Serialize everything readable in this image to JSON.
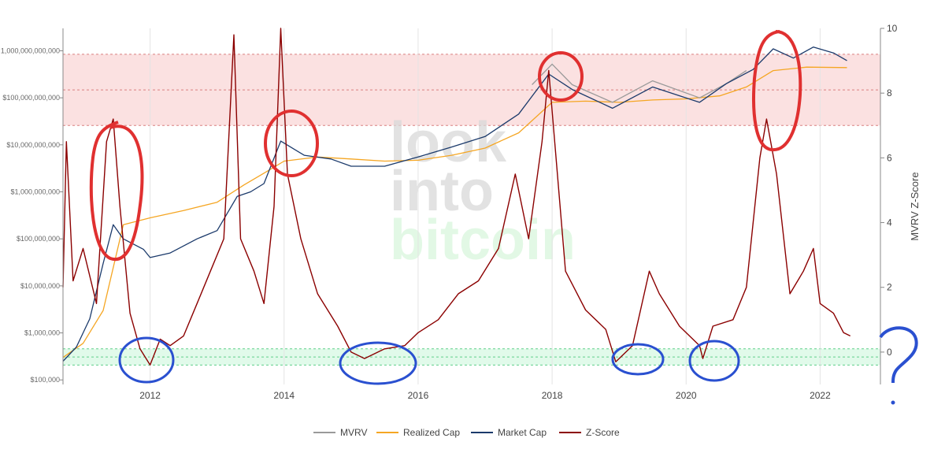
{
  "chart_data": {
    "type": "line",
    "y_scale": "log",
    "grid": true,
    "legend_position": "bottom",
    "x_ticks": [
      "2012",
      "2014",
      "2016",
      "2018",
      "2020",
      "2022"
    ],
    "x_tick_values": [
      2012,
      2014,
      2016,
      2018,
      2020,
      2022
    ],
    "xlim": [
      2010.7,
      2022.9
    ],
    "y_left_ticks": [
      {
        "value": 100000,
        "label": "$100,000"
      },
      {
        "value": 1000000,
        "label": "$1,000,000"
      },
      {
        "value": 10000000,
        "label": "$10,000,000"
      },
      {
        "value": 100000000,
        "label": "$100,000,000"
      },
      {
        "value": 1000000000,
        "label": "$1,000,000,000"
      },
      {
        "value": 10000000000,
        "label": "$10,000,000,000"
      },
      {
        "value": 100000000000,
        "label": "$100,000,000,000"
      },
      {
        "value": 1000000000000,
        "label": "1,000,000,000,000"
      }
    ],
    "y_right_ticks": [
      "0",
      "2",
      "4",
      "6",
      "8",
      "10"
    ],
    "y_right_tick_values": [
      0,
      2,
      4,
      6,
      8,
      10
    ],
    "y_right_label": "MVRV Z-Score",
    "ylim_left": [
      80000,
      3000000000000
    ],
    "ylim_right": [
      -1,
      10
    ],
    "bands": [
      {
        "zone": "high",
        "from": 7,
        "to": 9.2,
        "color": "#f8c8c8"
      },
      {
        "zone": "low",
        "from": -0.4,
        "to": 0.1,
        "color": "#c8f5d8"
      }
    ],
    "watermark": [
      "look",
      "into",
      "bitcoin"
    ],
    "series": [
      {
        "name": "MVRV",
        "color": "#9a9a9a",
        "axis": "left",
        "points": [
          [
            2017.7,
            190000000000
          ],
          [
            2018.0,
            520000000000
          ],
          [
            2018.3,
            190000000000
          ],
          [
            2018.9,
            80000000000
          ],
          [
            2019.5,
            230000000000
          ],
          [
            2020.2,
            100000000000
          ],
          [
            2020.6,
            200000000000
          ],
          [
            2020.9,
            380000000000
          ]
        ]
      },
      {
        "name": "Realized Cap",
        "color": "#f5a623",
        "axis": "left",
        "points": [
          [
            2010.7,
            300000
          ],
          [
            2011.0,
            600000
          ],
          [
            2011.3,
            3000000
          ],
          [
            2011.6,
            200000000
          ],
          [
            2012.0,
            280000000
          ],
          [
            2012.5,
            400000000
          ],
          [
            2013.0,
            600000000
          ],
          [
            2013.4,
            1400000000
          ],
          [
            2013.7,
            2500000000
          ],
          [
            2014.0,
            4500000000
          ],
          [
            2014.5,
            5500000000
          ],
          [
            2015.0,
            5000000000
          ],
          [
            2015.5,
            4500000000
          ],
          [
            2016.0,
            4700000000
          ],
          [
            2016.5,
            6000000000
          ],
          [
            2017.0,
            8500000000
          ],
          [
            2017.5,
            18000000000
          ],
          [
            2018.0,
            80000000000
          ],
          [
            2018.5,
            85000000000
          ],
          [
            2019.0,
            80000000000
          ],
          [
            2019.5,
            90000000000
          ],
          [
            2020.0,
            95000000000
          ],
          [
            2020.5,
            110000000000
          ],
          [
            2020.9,
            170000000000
          ],
          [
            2021.3,
            380000000000
          ],
          [
            2021.8,
            450000000000
          ],
          [
            2022.4,
            440000000000
          ]
        ]
      },
      {
        "name": "Market Cap",
        "color": "#1b3a6b",
        "axis": "left",
        "points": [
          [
            2010.7,
            250000
          ],
          [
            2010.9,
            500000
          ],
          [
            2011.1,
            2000000
          ],
          [
            2011.3,
            30000000
          ],
          [
            2011.45,
            200000000
          ],
          [
            2011.6,
            100000000
          ],
          [
            2011.9,
            60000000
          ],
          [
            2012.0,
            40000000
          ],
          [
            2012.3,
            50000000
          ],
          [
            2012.7,
            100000000
          ],
          [
            2013.0,
            150000000
          ],
          [
            2013.3,
            800000000
          ],
          [
            2013.5,
            1000000000
          ],
          [
            2013.7,
            1500000000
          ],
          [
            2013.95,
            12000000000
          ],
          [
            2014.3,
            6000000000
          ],
          [
            2014.7,
            5000000000
          ],
          [
            2015.0,
            3500000000
          ],
          [
            2015.5,
            3500000000
          ],
          [
            2016.0,
            5500000000
          ],
          [
            2016.5,
            9000000000
          ],
          [
            2017.0,
            15000000000
          ],
          [
            2017.5,
            45000000000
          ],
          [
            2017.95,
            320000000000
          ],
          [
            2018.3,
            150000000000
          ],
          [
            2018.9,
            60000000000
          ],
          [
            2019.5,
            170000000000
          ],
          [
            2020.2,
            80000000000
          ],
          [
            2020.6,
            200000000000
          ],
          [
            2021.0,
            400000000000
          ],
          [
            2021.3,
            1100000000000
          ],
          [
            2021.6,
            700000000000
          ],
          [
            2021.9,
            1200000000000
          ],
          [
            2022.2,
            900000000000
          ],
          [
            2022.4,
            620000000000
          ]
        ]
      },
      {
        "name": "Z-Score",
        "color": "#8b0000",
        "axis": "right",
        "points": [
          [
            2010.7,
            2
          ],
          [
            2010.75,
            6.5
          ],
          [
            2010.85,
            2.2
          ],
          [
            2011.0,
            3.2
          ],
          [
            2011.2,
            1.5
          ],
          [
            2011.35,
            6.5
          ],
          [
            2011.45,
            7.2
          ],
          [
            2011.55,
            4.5
          ],
          [
            2011.7,
            1.2
          ],
          [
            2011.85,
            0.1
          ],
          [
            2012.0,
            -0.4
          ],
          [
            2012.15,
            0.4
          ],
          [
            2012.3,
            0.2
          ],
          [
            2012.5,
            0.5
          ],
          [
            2012.7,
            1.5
          ],
          [
            2012.9,
            2.5
          ],
          [
            2013.1,
            3.5
          ],
          [
            2013.25,
            9.8
          ],
          [
            2013.35,
            3.5
          ],
          [
            2013.55,
            2.5
          ],
          [
            2013.7,
            1.5
          ],
          [
            2013.85,
            4.5
          ],
          [
            2013.95,
            10
          ],
          [
            2014.05,
            5.5
          ],
          [
            2014.25,
            3.5
          ],
          [
            2014.5,
            1.8
          ],
          [
            2014.8,
            0.8
          ],
          [
            2015.0,
            0.0
          ],
          [
            2015.2,
            -0.2
          ],
          [
            2015.5,
            0.1
          ],
          [
            2015.8,
            0.2
          ],
          [
            2016.0,
            0.6
          ],
          [
            2016.3,
            1.0
          ],
          [
            2016.6,
            1.8
          ],
          [
            2016.9,
            2.2
          ],
          [
            2017.2,
            3.2
          ],
          [
            2017.45,
            5.5
          ],
          [
            2017.65,
            3.5
          ],
          [
            2017.85,
            6.5
          ],
          [
            2017.95,
            8.7
          ],
          [
            2018.05,
            6.2
          ],
          [
            2018.2,
            2.5
          ],
          [
            2018.5,
            1.3
          ],
          [
            2018.8,
            0.7
          ],
          [
            2018.95,
            -0.3
          ],
          [
            2019.2,
            0.2
          ],
          [
            2019.45,
            2.5
          ],
          [
            2019.6,
            1.8
          ],
          [
            2019.9,
            0.8
          ],
          [
            2020.2,
            0.2
          ],
          [
            2020.25,
            -0.2
          ],
          [
            2020.4,
            0.8
          ],
          [
            2020.7,
            1.0
          ],
          [
            2020.9,
            2.0
          ],
          [
            2021.1,
            6.0
          ],
          [
            2021.2,
            7.2
          ],
          [
            2021.35,
            5.5
          ],
          [
            2021.55,
            1.8
          ],
          [
            2021.75,
            2.5
          ],
          [
            2021.9,
            3.2
          ],
          [
            2022.0,
            1.5
          ],
          [
            2022.2,
            1.2
          ],
          [
            2022.35,
            0.6
          ],
          [
            2022.45,
            0.5
          ]
        ]
      }
    ]
  },
  "annotations": {
    "question_mark": "?"
  }
}
